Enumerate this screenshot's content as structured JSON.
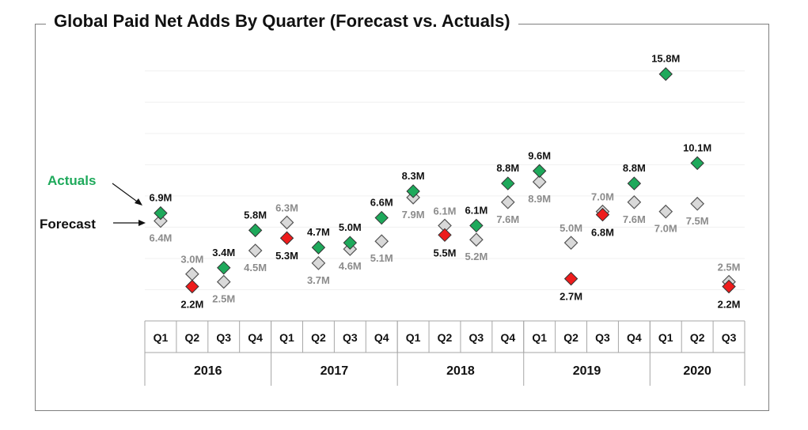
{
  "chart_data": {
    "type": "scatter",
    "title": "Global Paid Net Adds By Quarter (Forecast vs. Actuals)",
    "years": [
      "2016",
      "2017",
      "2018",
      "2019",
      "2020"
    ],
    "quarters": [
      "Q1",
      "Q2",
      "Q3",
      "Q4",
      "Q1",
      "Q2",
      "Q3",
      "Q4",
      "Q1",
      "Q2",
      "Q3",
      "Q4",
      "Q1",
      "Q2",
      "Q3",
      "Q4",
      "Q1",
      "Q2",
      "Q3"
    ],
    "categories": [
      "2016 Q1",
      "2016 Q2",
      "2016 Q3",
      "2016 Q4",
      "2017 Q1",
      "2017 Q2",
      "2017 Q3",
      "2017 Q4",
      "2018 Q1",
      "2018 Q2",
      "2018 Q3",
      "2018 Q4",
      "2019 Q1",
      "2019 Q2",
      "2019 Q3",
      "2019 Q4",
      "2020 Q1",
      "2020 Q2",
      "2020 Q3"
    ],
    "unit": "M",
    "ylim": [
      0,
      17
    ],
    "series": [
      {
        "name": "Actuals",
        "values": [
          6.9,
          2.2,
          3.4,
          5.8,
          5.3,
          4.7,
          5.0,
          6.6,
          8.3,
          5.5,
          6.1,
          8.8,
          9.6,
          2.7,
          6.8,
          8.8,
          15.8,
          10.1,
          2.2
        ],
        "labels": [
          "6.9M",
          "2.2M",
          "3.4M",
          "5.8M",
          "5.3M",
          "4.7M",
          "5.0M",
          "6.6M",
          "8.3M",
          "5.5M",
          "6.1M",
          "8.8M",
          "9.6M",
          "2.7M",
          "6.8M",
          "8.8M",
          "15.8M",
          "10.1M",
          "2.2M"
        ],
        "beat_forecast": [
          true,
          false,
          true,
          true,
          false,
          true,
          true,
          true,
          true,
          false,
          true,
          true,
          true,
          false,
          false,
          true,
          true,
          true,
          false
        ]
      },
      {
        "name": "Forecast",
        "values": [
          6.4,
          3.0,
          2.5,
          4.5,
          6.3,
          3.7,
          4.6,
          5.1,
          7.9,
          6.1,
          5.2,
          7.6,
          8.9,
          5.0,
          7.0,
          7.6,
          7.0,
          7.5,
          2.5
        ],
        "labels": [
          "6.4M",
          "3.0M",
          "2.5M",
          "4.5M",
          "6.3M",
          "3.7M",
          "4.6M",
          "5.1M",
          "7.9M",
          "6.1M",
          "5.2M",
          "7.6M",
          "8.9M",
          "5.0M",
          "7.0M",
          "7.6M",
          "7.0M",
          "7.5M",
          "2.5M"
        ]
      }
    ],
    "legend": {
      "actuals": "Actuals",
      "forecast": "Forecast"
    },
    "colors": {
      "beat": "#1ea95b",
      "miss": "#ee1c1c",
      "forecast_fill": "#d9d9d9",
      "forecast_label": "#8c8c8c",
      "gridline": "#f0f0f0"
    },
    "grid": true
  }
}
